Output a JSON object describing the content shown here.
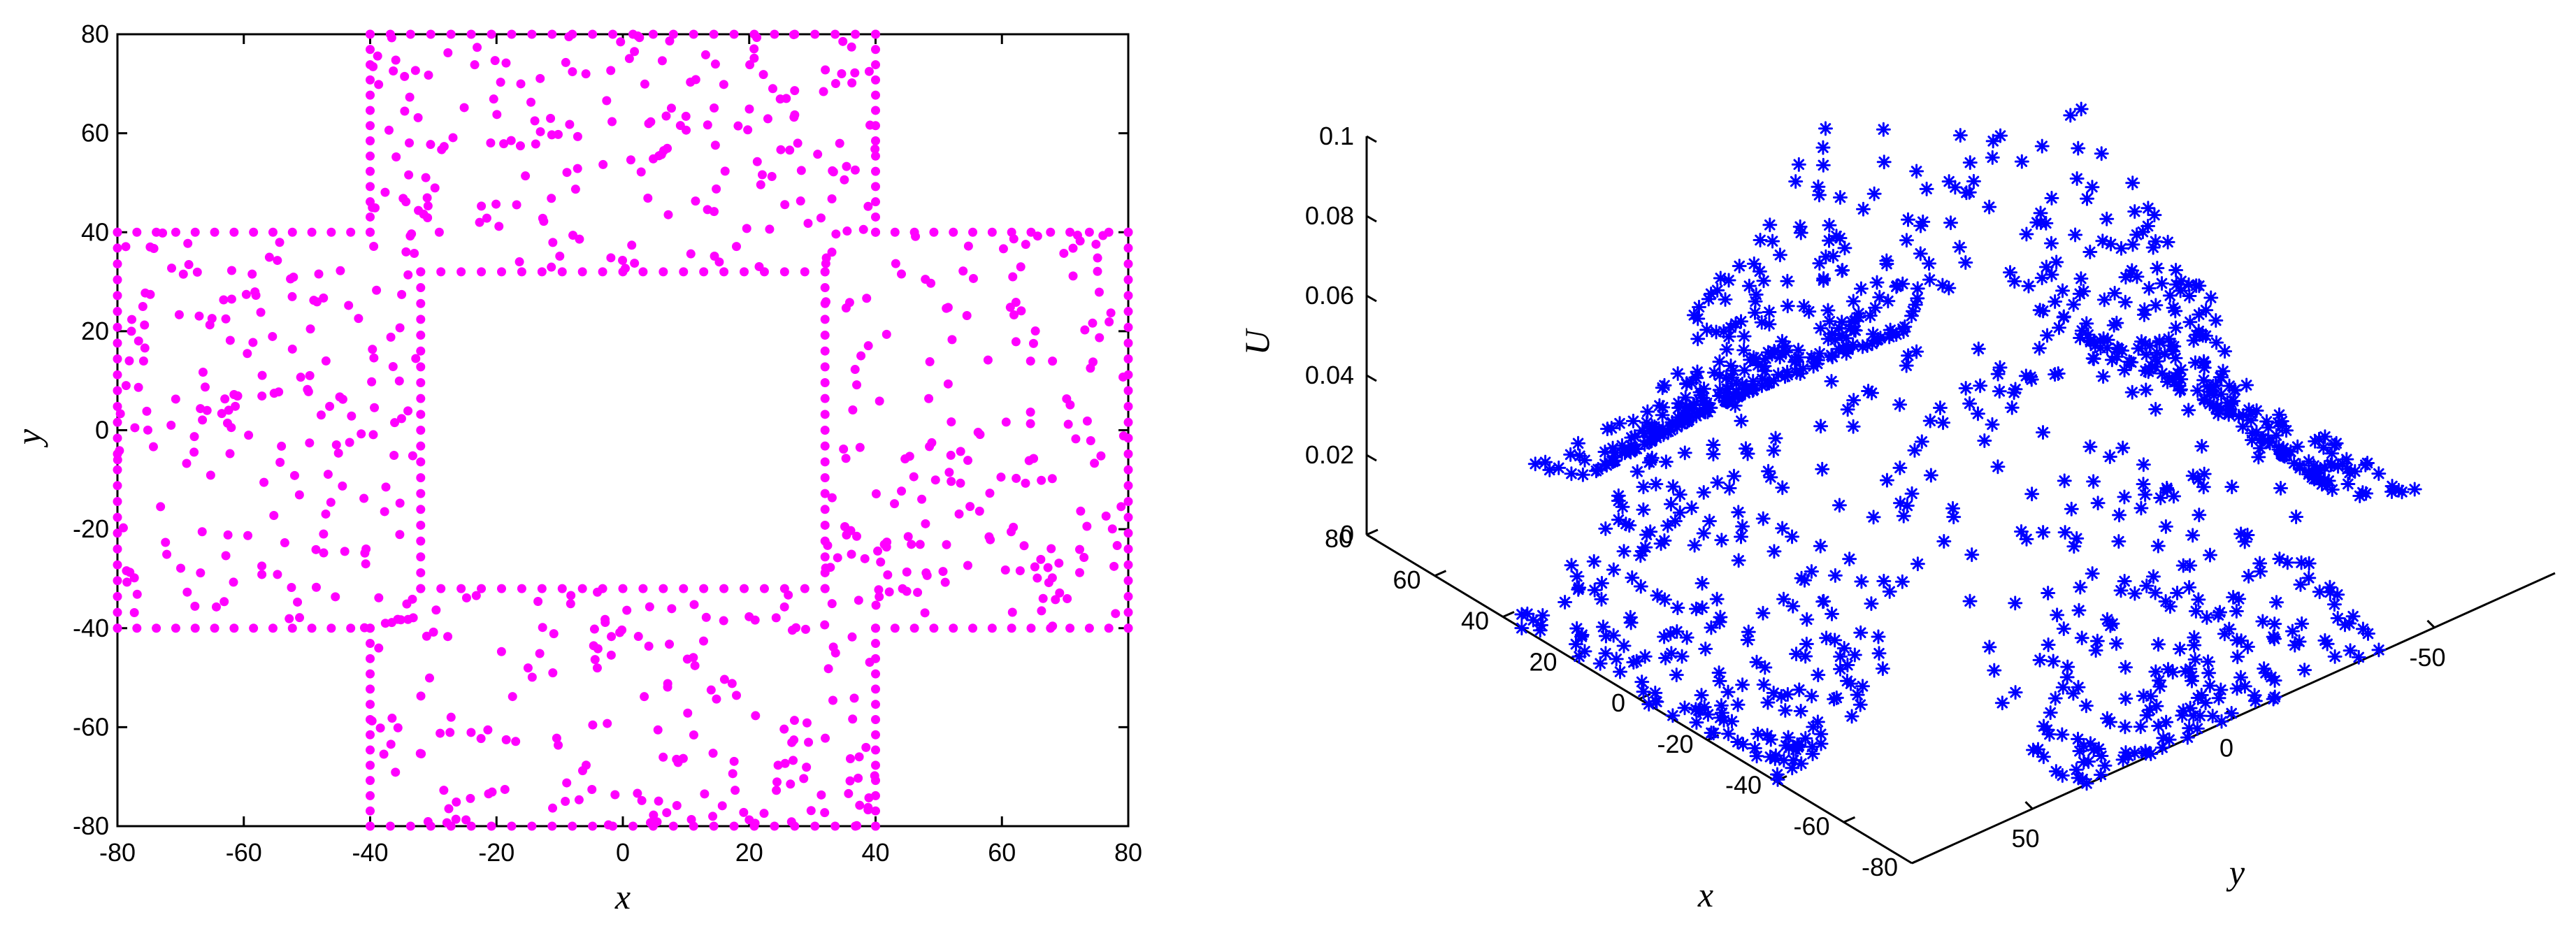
{
  "chart_data": [
    {
      "type": "scatter",
      "title": "",
      "xlabel": "x",
      "ylabel": "y",
      "xlim": [
        -80,
        80
      ],
      "ylim": [
        -80,
        80
      ],
      "xticks": [
        -80,
        -60,
        -40,
        -20,
        0,
        20,
        40,
        60,
        80
      ],
      "yticks": [
        -80,
        -60,
        -40,
        -20,
        0,
        20,
        40,
        60,
        80
      ],
      "grid": false,
      "legend": "none",
      "marker": "filled-circle",
      "color": "#ff00ff",
      "description_regions": {
        "domain": "plus-shaped (cross) region: union of |x|<=80,|y|<=40 and |x|<=40,|y|<=80",
        "hole": "empty square |x|<32,|y|<32"
      },
      "sample_points": [
        [
          -63,
          25
        ],
        [
          -45,
          10
        ],
        [
          -72,
          -5
        ],
        [
          -55,
          -30
        ],
        [
          -66,
          35
        ],
        [
          -48,
          -12
        ],
        [
          -75,
          18
        ],
        [
          -52,
          30
        ],
        [
          -38,
          5
        ],
        [
          -60,
          -35
        ],
        [
          -70,
          -20
        ],
        [
          -44,
          22
        ],
        [
          -58,
          2
        ],
        [
          -35,
          -25
        ],
        [
          -68,
          8
        ],
        [
          -50,
          -20
        ],
        [
          63,
          25
        ],
        [
          45,
          10
        ],
        [
          72,
          -5
        ],
        [
          55,
          -30
        ],
        [
          66,
          35
        ],
        [
          48,
          -12
        ],
        [
          75,
          18
        ],
        [
          52,
          30
        ],
        [
          38,
          5
        ],
        [
          60,
          -35
        ],
        [
          70,
          -20
        ],
        [
          44,
          22
        ],
        [
          58,
          2
        ],
        [
          35,
          -25
        ],
        [
          68,
          8
        ],
        [
          50,
          -20
        ],
        [
          -25,
          63
        ],
        [
          -10,
          45
        ],
        [
          5,
          72
        ],
        [
          30,
          55
        ],
        [
          -35,
          66
        ],
        [
          12,
          48
        ],
        [
          -18,
          75
        ],
        [
          -30,
          52
        ],
        [
          -5,
          38
        ],
        [
          35,
          60
        ],
        [
          20,
          70
        ],
        [
          -22,
          44
        ],
        [
          -2,
          58
        ],
        [
          25,
          35
        ],
        [
          -8,
          68
        ],
        [
          20,
          50
        ],
        [
          -25,
          -63
        ],
        [
          -10,
          -45
        ],
        [
          5,
          -72
        ],
        [
          30,
          -55
        ],
        [
          -35,
          -66
        ],
        [
          12,
          -48
        ],
        [
          -18,
          -75
        ],
        [
          -30,
          -52
        ],
        [
          -5,
          -38
        ],
        [
          35,
          -60
        ],
        [
          20,
          -70
        ],
        [
          -22,
          -44
        ],
        [
          -2,
          -58
        ],
        [
          25,
          -35
        ],
        [
          -8,
          -68
        ],
        [
          20,
          -50
        ]
      ],
      "boundary": {
        "outer_edges": "points spaced along the outer edges of the cross",
        "inner_edges": "points spaced along the edges of the inner square hole (|x|=32 or |y|=32)"
      }
    },
    {
      "type": "scatter3d",
      "title": "",
      "xlabel": "x",
      "ylabel": "y",
      "zlabel": "U",
      "xlim": [
        -80,
        80
      ],
      "ylim": [
        -80,
        80
      ],
      "zlim": [
        0,
        0.1
      ],
      "xticks": [
        -80,
        -60,
        -40,
        -20,
        0,
        20,
        40,
        60,
        80
      ],
      "yticks": [
        50,
        0,
        -50
      ],
      "zticks": [
        0,
        0.02,
        0.04,
        0.06,
        0.08,
        0.1
      ],
      "ztick_labels": [
        "0",
        "0.02",
        "0.04",
        "0.06",
        "0.08",
        "0.1"
      ],
      "grid": false,
      "legend": "none",
      "marker": "asterisk",
      "color": "#0000ff",
      "description": "solution U over the same cross-shaped domain; U peaks near 0.1 at the corner region close to the center-hole boundary and decreases toward 0 at the outer arm tips"
    }
  ]
}
